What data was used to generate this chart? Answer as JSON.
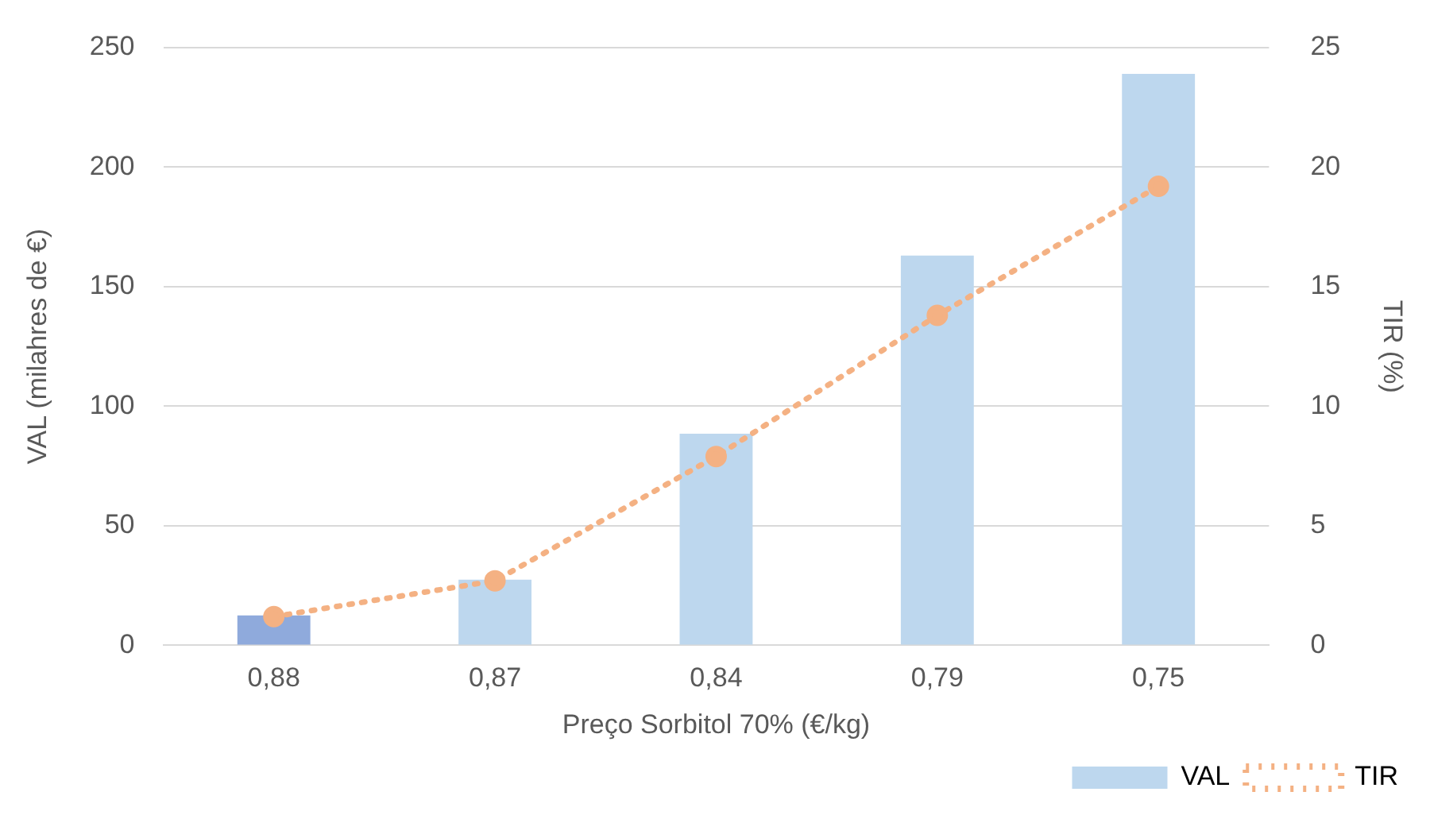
{
  "chart_data": {
    "type": "bar",
    "categories": [
      "0,88",
      "0,87",
      "0,84",
      "0,79",
      "0,75"
    ],
    "xlabel": "Preço Sorbitol 70% (€/kg)",
    "ylabel": "VAL (milahres de €)",
    "y2label": "TIR (%)",
    "series": [
      {
        "name": "VAL",
        "color": "#bdd7ee",
        "colors": [
          "#8faadc",
          "#bdd7ee",
          "#bdd7ee",
          "#bdd7ee",
          "#bdd7ee"
        ],
        "values": [
          12.5,
          27.5,
          88.5,
          163,
          239
        ]
      },
      {
        "name": "TIR",
        "type": "line",
        "axis": "y2",
        "color": "#f4b183",
        "marker": "circle",
        "line_style": "dotted",
        "values": [
          1.2,
          2.7,
          7.9,
          13.8,
          19.2
        ]
      }
    ],
    "ylim": [
      0,
      250
    ],
    "yticks": [
      0,
      50,
      100,
      150,
      200,
      250
    ],
    "y2lim": [
      0,
      25
    ],
    "y2ticks": [
      0,
      5,
      10,
      15,
      20,
      25
    ],
    "grid": "y",
    "legend": "bottom right"
  }
}
